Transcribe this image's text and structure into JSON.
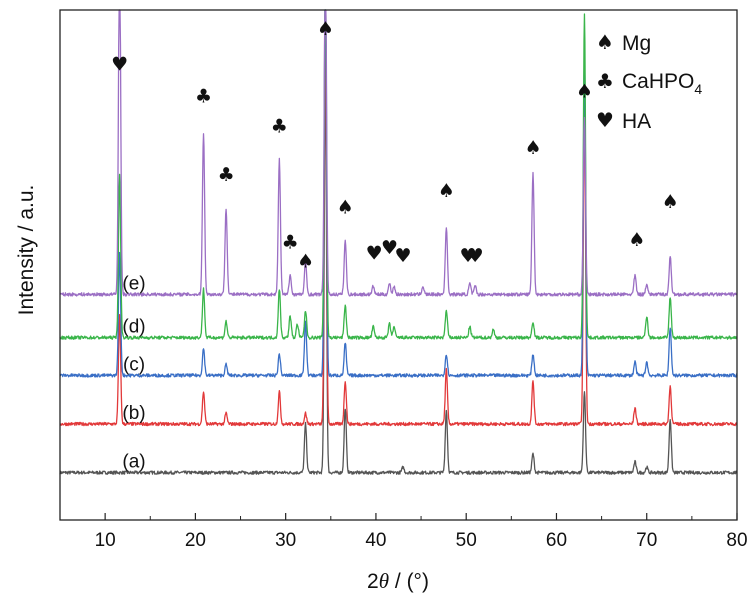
{
  "chart_data": {
    "type": "line",
    "xlabel_parts": {
      "prefix": "2",
      "var": "θ",
      "suffix": " / (°)"
    },
    "ylabel": "Intensity / a.u.",
    "xlim": [
      5,
      80
    ],
    "xticks": [
      10,
      20,
      30,
      40,
      50,
      60,
      70,
      80
    ],
    "yticks_shown": false,
    "grid": false,
    "legend_position": "top-right",
    "legend": [
      {
        "symbol": "♠",
        "label": "Mg",
        "subscript": ""
      },
      {
        "symbol": "♣",
        "label": "CaHPO",
        "subscript": "4"
      },
      {
        "symbol": "♥",
        "label": "HA",
        "subscript": ""
      }
    ],
    "series": [
      {
        "name": "(a)",
        "color": "#555555",
        "baseline": 0.02,
        "peaks": [
          [
            32.2,
            0.18
          ],
          [
            34.4,
            1.5
          ],
          [
            36.6,
            0.24
          ],
          [
            43.0,
            0.02
          ],
          [
            47.8,
            0.23
          ],
          [
            57.4,
            0.07
          ],
          [
            63.1,
            0.3
          ],
          [
            68.7,
            0.04
          ],
          [
            70.0,
            0.02
          ],
          [
            72.6,
            0.2
          ]
        ]
      },
      {
        "name": "(b)",
        "color": "#e2393a",
        "baseline": 0.2,
        "peaks": [
          [
            11.6,
            0.4
          ],
          [
            20.9,
            0.12
          ],
          [
            23.4,
            0.04
          ],
          [
            29.3,
            0.12
          ],
          [
            32.2,
            0.04
          ],
          [
            34.4,
            1.5
          ],
          [
            36.6,
            0.16
          ],
          [
            47.8,
            0.2
          ],
          [
            57.4,
            0.16
          ],
          [
            63.1,
            1.2
          ],
          [
            68.7,
            0.06
          ],
          [
            72.6,
            0.14
          ]
        ]
      },
      {
        "name": "(c)",
        "color": "#3a6fc6",
        "baseline": 0.38,
        "peaks": [
          [
            11.6,
            0.45
          ],
          [
            20.9,
            0.1
          ],
          [
            23.4,
            0.04
          ],
          [
            29.3,
            0.08
          ],
          [
            32.2,
            0.2
          ],
          [
            34.4,
            1.5
          ],
          [
            36.6,
            0.12
          ],
          [
            47.8,
            0.08
          ],
          [
            57.4,
            0.08
          ],
          [
            63.1,
            1.2
          ],
          [
            68.7,
            0.05
          ],
          [
            70.0,
            0.05
          ],
          [
            72.6,
            0.18
          ]
        ]
      },
      {
        "name": "(d)",
        "color": "#3ab54a",
        "baseline": 0.52,
        "peaks": [
          [
            11.6,
            0.6
          ],
          [
            20.9,
            0.18
          ],
          [
            23.4,
            0.06
          ],
          [
            29.3,
            0.18
          ],
          [
            30.5,
            0.08
          ],
          [
            31.3,
            0.05
          ],
          [
            32.2,
            0.1
          ],
          [
            34.4,
            1.4
          ],
          [
            36.6,
            0.12
          ],
          [
            39.7,
            0.04
          ],
          [
            41.5,
            0.05
          ],
          [
            42.0,
            0.04
          ],
          [
            47.8,
            0.1
          ],
          [
            50.4,
            0.04
          ],
          [
            53.0,
            0.03
          ],
          [
            57.4,
            0.06
          ],
          [
            63.1,
            1.2
          ],
          [
            70.0,
            0.08
          ],
          [
            72.6,
            0.15
          ]
        ]
      },
      {
        "name": "(e)",
        "color": "#9b6fc4",
        "baseline": 0.68,
        "peaks": [
          [
            11.6,
            1.3
          ],
          [
            20.9,
            0.6
          ],
          [
            23.4,
            0.32
          ],
          [
            29.3,
            0.5
          ],
          [
            30.5,
            0.07
          ],
          [
            32.2,
            0.12
          ],
          [
            34.4,
            1.3
          ],
          [
            36.6,
            0.2
          ],
          [
            39.7,
            0.03
          ],
          [
            41.5,
            0.04
          ],
          [
            42.0,
            0.03
          ],
          [
            45.2,
            0.03
          ],
          [
            47.8,
            0.25
          ],
          [
            50.4,
            0.04
          ],
          [
            51.0,
            0.03
          ],
          [
            57.4,
            0.45
          ],
          [
            63.1,
            0.66
          ],
          [
            68.7,
            0.07
          ],
          [
            70.0,
            0.04
          ],
          [
            72.6,
            0.14
          ]
        ]
      }
    ],
    "markers": [
      {
        "symbol": "♥",
        "x": 11.6,
        "y": 1.51
      },
      {
        "symbol": "♣",
        "x": 20.9,
        "y": 1.39
      },
      {
        "symbol": "♣",
        "x": 23.4,
        "y": 1.1
      },
      {
        "symbol": "♣",
        "x": 29.3,
        "y": 1.28
      },
      {
        "symbol": "♣",
        "x": 30.5,
        "y": 0.85
      },
      {
        "symbol": "♠",
        "x": 32.2,
        "y": 0.78
      },
      {
        "symbol": "♠",
        "x": 34.4,
        "y": 1.64
      },
      {
        "symbol": "♠",
        "x": 36.6,
        "y": 0.98
      },
      {
        "symbol": "♥",
        "x": 39.8,
        "y": 0.81
      },
      {
        "symbol": "♥",
        "x": 41.5,
        "y": 0.83
      },
      {
        "symbol": "♥",
        "x": 43.0,
        "y": 0.8
      },
      {
        "symbol": "♠",
        "x": 47.8,
        "y": 1.04
      },
      {
        "symbol": "♥",
        "x": 50.2,
        "y": 0.8
      },
      {
        "symbol": "♥",
        "x": 51.0,
        "y": 0.8
      },
      {
        "symbol": "♠",
        "x": 57.4,
        "y": 1.2
      },
      {
        "symbol": "♠",
        "x": 63.1,
        "y": 1.41
      },
      {
        "symbol": "♠",
        "x": 68.9,
        "y": 0.86
      },
      {
        "symbol": "♠",
        "x": 72.6,
        "y": 1.0
      }
    ]
  }
}
